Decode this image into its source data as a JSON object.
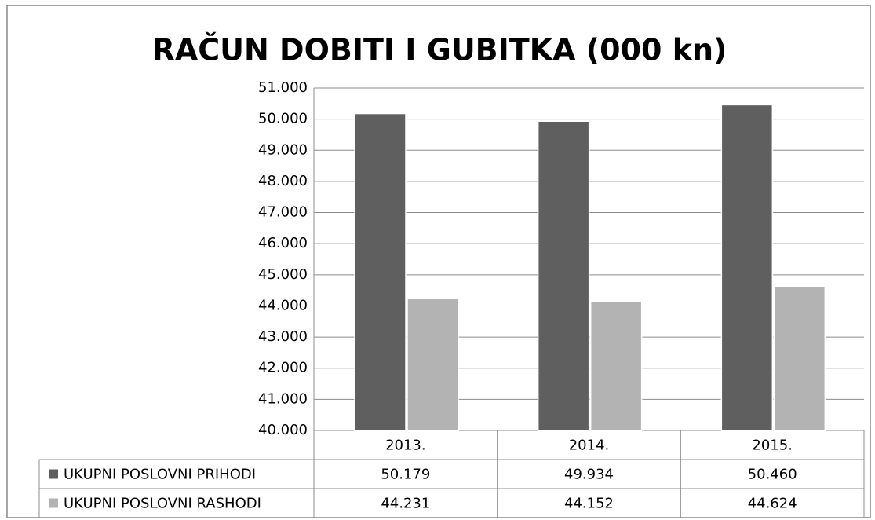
{
  "chart_data": {
    "type": "bar",
    "title": "RAČUN DOBITI I GUBITKA (000 kn)",
    "categories": [
      "2013.",
      "2014.",
      "2015."
    ],
    "series": [
      {
        "name": "UKUPNI POSLOVNI PRIHODI",
        "color": "#5f5f5f",
        "values": [
          50179,
          49934,
          50460
        ],
        "value_labels": [
          "50.179",
          "49.934",
          "50.460"
        ]
      },
      {
        "name": "UKUPNI POSLOVNI RASHODI",
        "color": "#b3b3b3",
        "values": [
          44231,
          44152,
          44624
        ],
        "value_labels": [
          "44.231",
          "44.152",
          "44.624"
        ]
      }
    ],
    "ylim": [
      40000,
      51000
    ],
    "yticks": [
      {
        "value": 40000,
        "label": "40.000"
      },
      {
        "value": 41000,
        "label": "41.000"
      },
      {
        "value": 42000,
        "label": "42.000"
      },
      {
        "value": 43000,
        "label": "43.000"
      },
      {
        "value": 44000,
        "label": "44.000"
      },
      {
        "value": 45000,
        "label": "45.000"
      },
      {
        "value": 46000,
        "label": "46.000"
      },
      {
        "value": 47000,
        "label": "47.000"
      },
      {
        "value": 48000,
        "label": "48.000"
      },
      {
        "value": 49000,
        "label": "49.000"
      },
      {
        "value": 50000,
        "label": "50.000"
      },
      {
        "value": 51000,
        "label": "51.000"
      }
    ],
    "grid": true
  }
}
